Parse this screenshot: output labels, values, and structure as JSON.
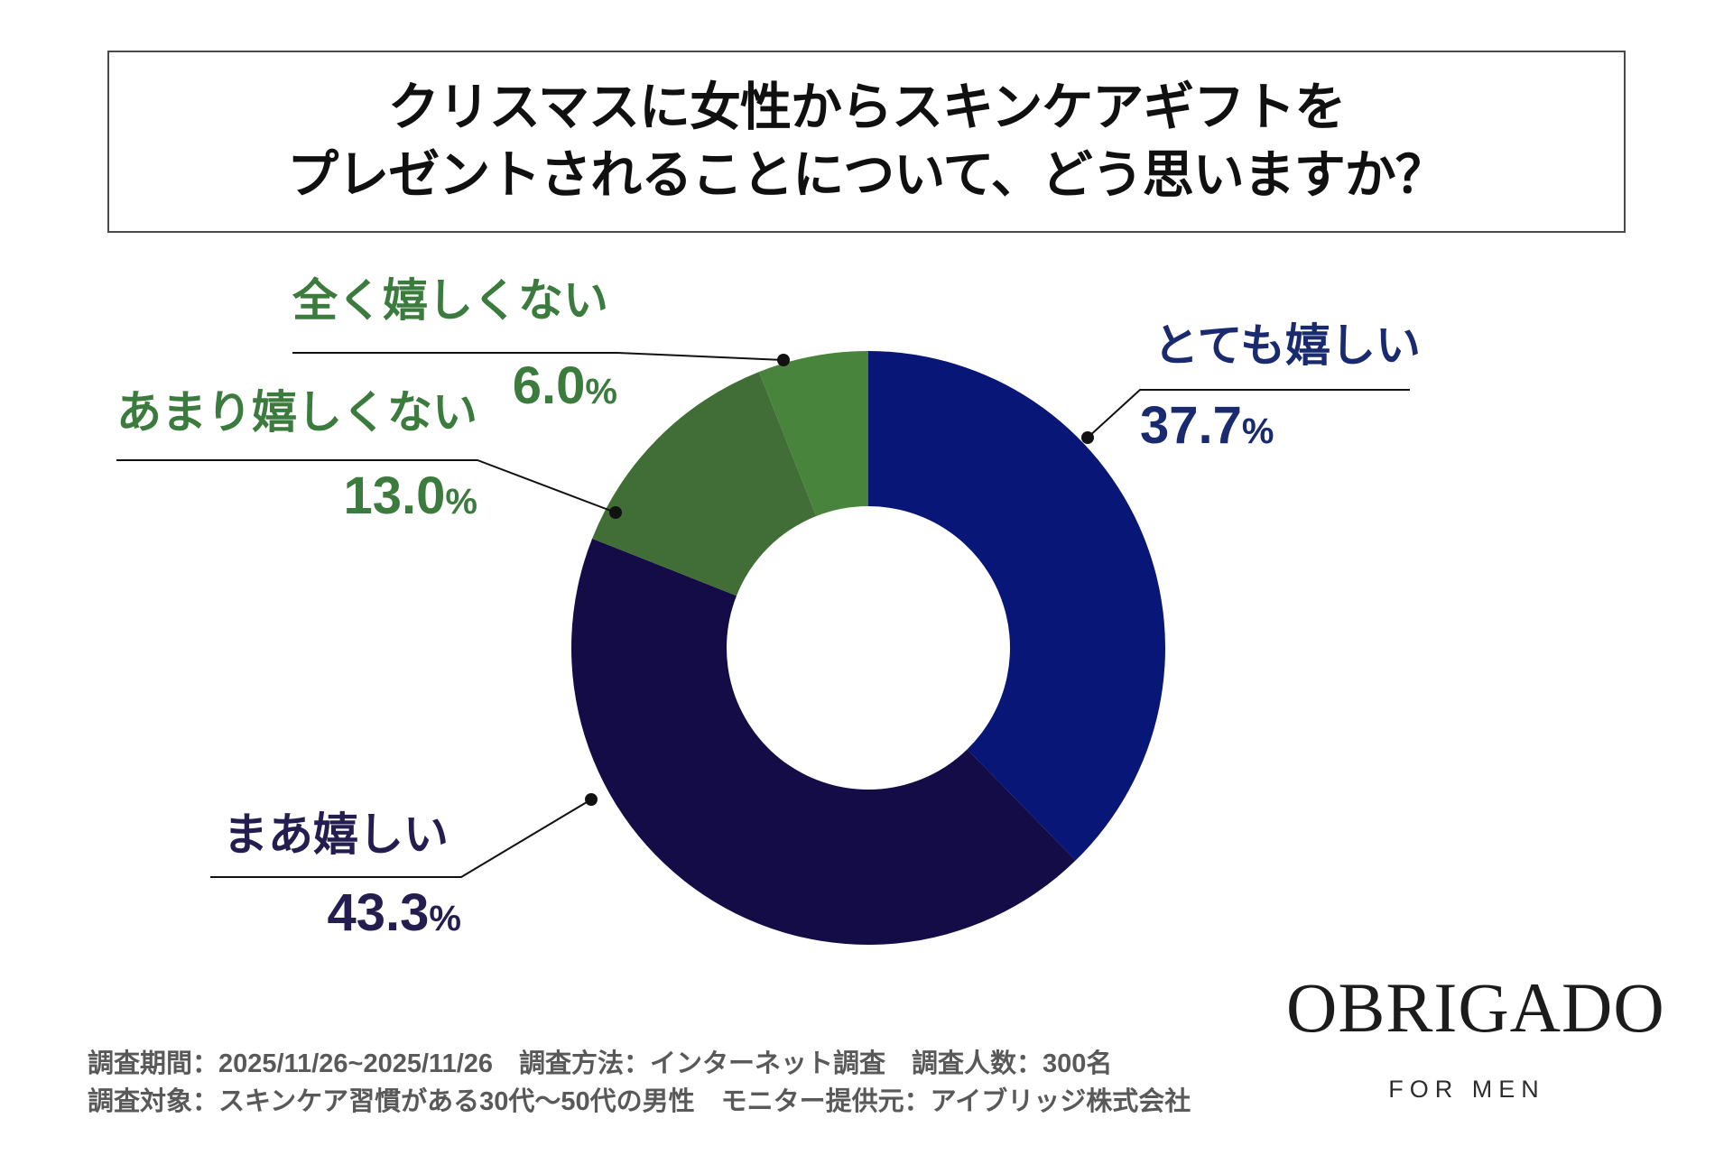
{
  "title": {
    "line1": "クリスマスに女性からスキンケアギフトを",
    "line2": "プレゼントされることについて、どう思いますか？"
  },
  "chart_data": {
    "type": "pie",
    "subtype": "donut",
    "title": "クリスマスに女性からスキンケアギフトをプレゼントされることについて、どう思いますか？",
    "start_angle_deg": 0,
    "direction": "clockwise",
    "categories": [
      "とても嬉しい",
      "まあ嬉しい",
      "あまり嬉しくない",
      "全く嬉しくない"
    ],
    "values": [
      37.7,
      43.3,
      13.0,
      6.0
    ],
    "display_values": [
      "37.7",
      "43.3",
      "13.0",
      "6.0"
    ],
    "unit": "%",
    "slice_colors": [
      "#071677",
      "#140c46",
      "#416d37",
      "#48843c"
    ],
    "label_colors": [
      "#1a2a6e",
      "#241d50",
      "#3c7b3e",
      "#3c7b3e"
    ],
    "legend_position": "callouts",
    "leader_line_color": "#111111"
  },
  "footer": {
    "line1": "調査期間：2025/11/26~2025/11/26　調査方法：インターネット調査　調査人数：300名",
    "line2": "調査対象：スキンケア習慣がある30代～50代の男性　モニター提供元：アイブリッジ株式会社"
  },
  "brand": {
    "logo": "OBRIGADO",
    "tagline": "FOR MEN"
  }
}
